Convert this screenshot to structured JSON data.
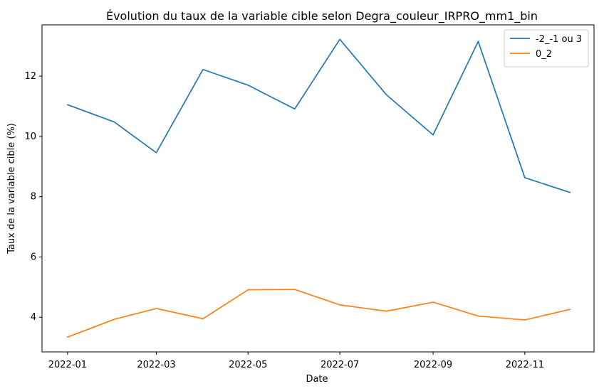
{
  "chart_data": {
    "type": "line",
    "title": "Évolution du taux de la variable cible selon Degra_couleur_IRPRO_mm1_bin",
    "xlabel": "Date",
    "ylabel": "Taux de la variable cible (%)",
    "x": [
      "2022-01-01",
      "2022-02-01",
      "2022-03-01",
      "2022-04-01",
      "2022-05-01",
      "2022-06-01",
      "2022-07-01",
      "2022-08-01",
      "2022-09-01",
      "2022-10-01",
      "2022-11-01",
      "2022-12-01"
    ],
    "x_ticks": [
      "2022-01",
      "2022-03",
      "2022-05",
      "2022-07",
      "2022-09",
      "2022-11"
    ],
    "y_ticks": [
      4,
      6,
      8,
      10,
      12
    ],
    "xlim": [
      "2021-12-15",
      "2022-12-17"
    ],
    "ylim": [
      2.85,
      13.7
    ],
    "grid": false,
    "legend_position": "top-right",
    "series": [
      {
        "name": "-2_-1 ou 3",
        "color": "#1f77b4",
        "values": [
          11.05,
          10.48,
          9.46,
          12.22,
          11.7,
          10.91,
          13.22,
          11.38,
          10.05,
          13.15,
          8.63,
          8.14
        ]
      },
      {
        "name": "0_2",
        "color": "#ff7f0e",
        "values": [
          3.34,
          3.93,
          4.29,
          3.95,
          4.91,
          4.92,
          4.41,
          4.2,
          4.5,
          4.04,
          3.91,
          4.26
        ]
      }
    ]
  }
}
